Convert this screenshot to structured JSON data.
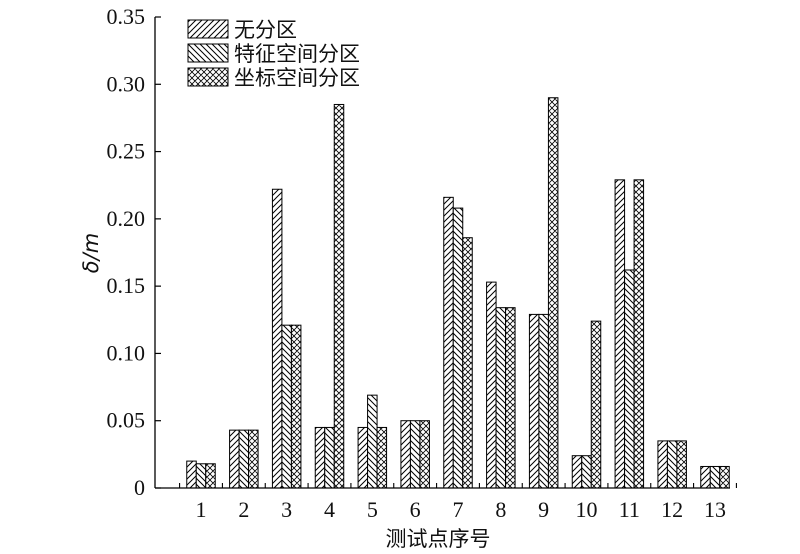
{
  "chart_data": {
    "type": "bar",
    "title": "",
    "xlabel": "测试点序号",
    "ylabel": "δ/m",
    "ylim": [
      0,
      0.35
    ],
    "yticks": [
      "0",
      "0.05",
      "0.10",
      "0.15",
      "0.20",
      "0.25",
      "0.30",
      "0.35"
    ],
    "categories": [
      "1",
      "2",
      "3",
      "4",
      "5",
      "6",
      "7",
      "8",
      "9",
      "10",
      "11",
      "12",
      "13"
    ],
    "legend_position": "top-left",
    "grid": false,
    "series": [
      {
        "name": "无分区",
        "pattern": "diag-right",
        "values": [
          0.02,
          0.043,
          0.222,
          0.045,
          0.045,
          0.05,
          0.216,
          0.153,
          0.129,
          0.024,
          0.229,
          0.035,
          0.016
        ]
      },
      {
        "name": "特征空间分区",
        "pattern": "diag-left",
        "values": [
          0.018,
          0.043,
          0.121,
          0.045,
          0.069,
          0.05,
          0.208,
          0.134,
          0.129,
          0.024,
          0.162,
          0.035,
          0.016
        ]
      },
      {
        "name": "坐标空间分区",
        "pattern": "cross",
        "values": [
          0.018,
          0.043,
          0.121,
          0.285,
          0.045,
          0.05,
          0.186,
          0.134,
          0.29,
          0.124,
          0.229,
          0.035,
          0.016
        ]
      }
    ]
  }
}
